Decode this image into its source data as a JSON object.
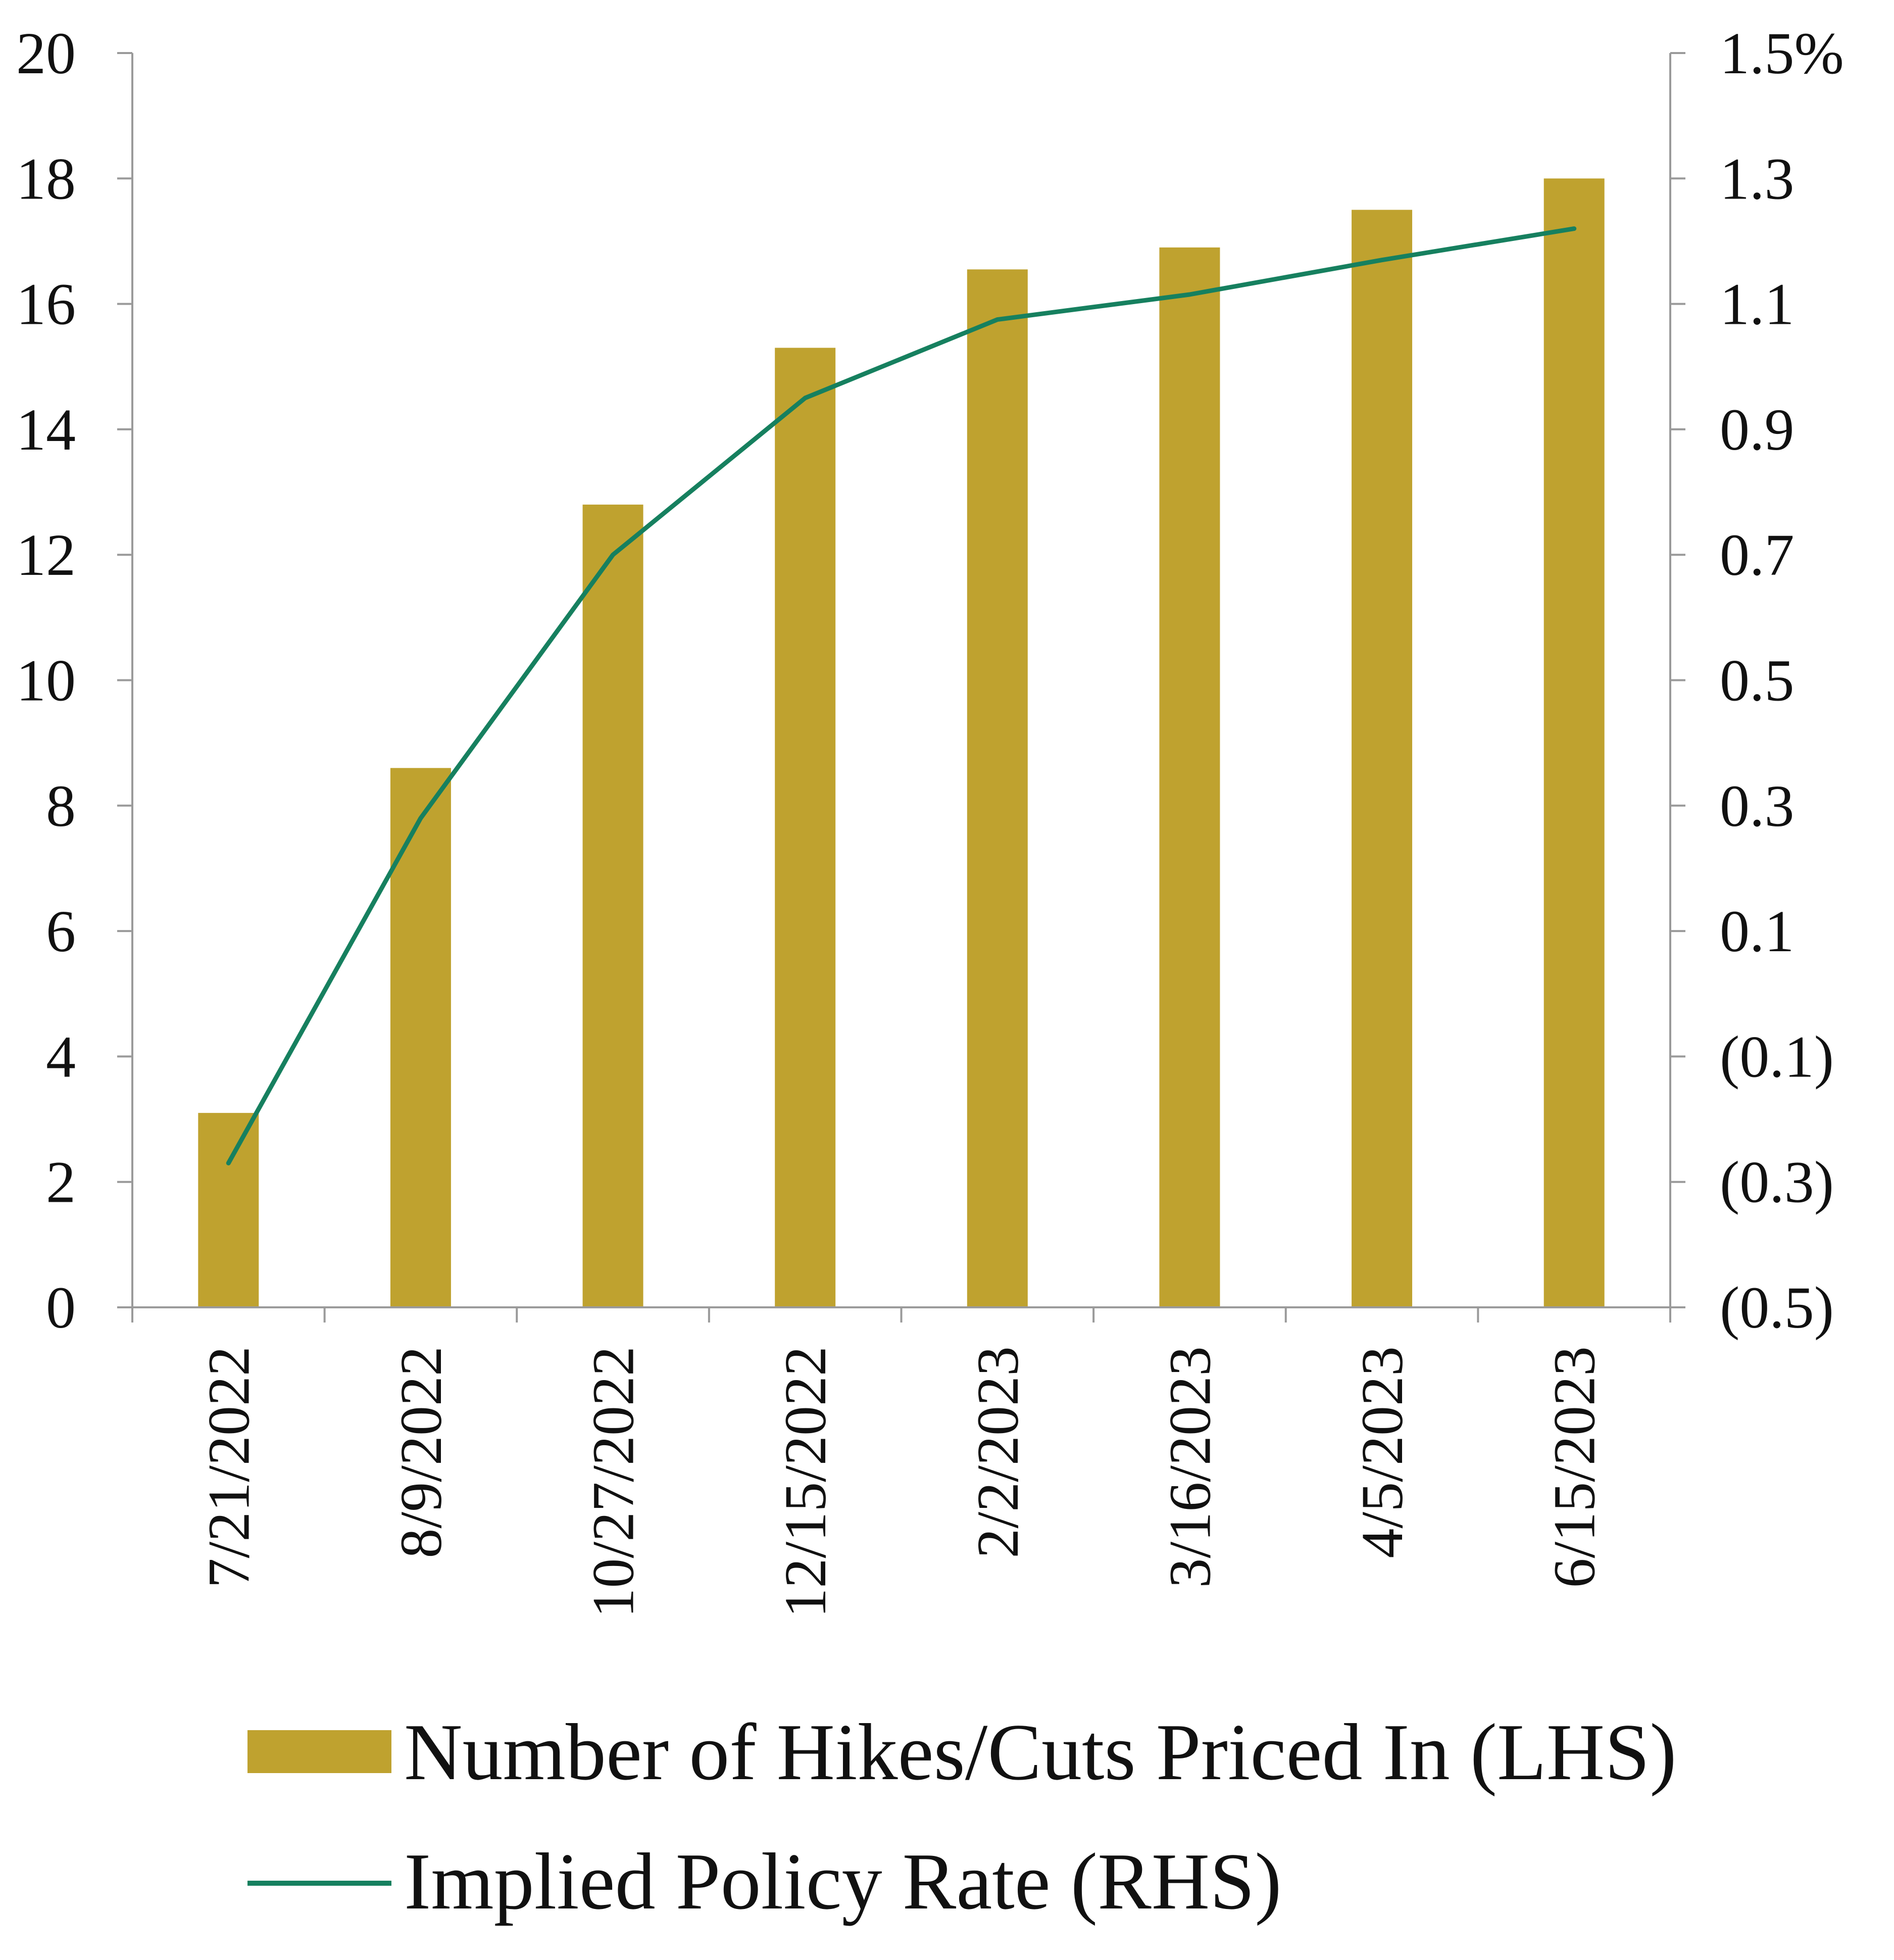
{
  "chart_data": {
    "type": "bar",
    "categories": [
      "7/21/2022",
      "8/9/2022",
      "10/27/2022",
      "12/15/2022",
      "2/2/2023",
      "3/16/2023",
      "4/5/2023",
      "6/15/2023"
    ],
    "series": [
      {
        "name": "Number of Hikes/Cuts Priced In (LHS)",
        "type": "bar",
        "axis": "left",
        "color": "#BFA22F",
        "values": [
          3.1,
          8.6,
          12.8,
          15.3,
          16.55,
          16.9,
          17.5,
          18.0
        ]
      },
      {
        "name": "Implied Policy Rate (RHS)",
        "type": "line",
        "axis": "right",
        "color": "#16805F",
        "values": [
          -0.27,
          0.28,
          0.7,
          0.95,
          1.075,
          1.115,
          1.17,
          1.22
        ]
      }
    ],
    "y_left": {
      "ylim": [
        0,
        20
      ],
      "ticks": [
        0,
        2,
        4,
        6,
        8,
        10,
        12,
        14,
        16,
        18,
        20
      ],
      "tick_labels": [
        "0",
        "2",
        "4",
        "6",
        "8",
        "10",
        "12",
        "14",
        "16",
        "18",
        "20"
      ]
    },
    "y_right": {
      "ylim": [
        -0.5,
        1.5
      ],
      "ticks": [
        -0.5,
        -0.3,
        -0.1,
        0.1,
        0.3,
        0.5,
        0.7,
        0.9,
        1.1,
        1.3,
        1.5
      ],
      "tick_labels": [
        "(0.5)",
        "(0.3)",
        "(0.1)",
        "0.1",
        "0.3",
        "0.5",
        "0.7",
        "0.9",
        "1.1",
        "1.3",
        "1.5%"
      ]
    },
    "title": "",
    "xlabel": "",
    "grid": false,
    "legend_position": "bottom"
  },
  "colors": {
    "bar": "#BFA22F",
    "line": "#16805F",
    "axis": "#9A9A9A",
    "text": "#111111"
  }
}
